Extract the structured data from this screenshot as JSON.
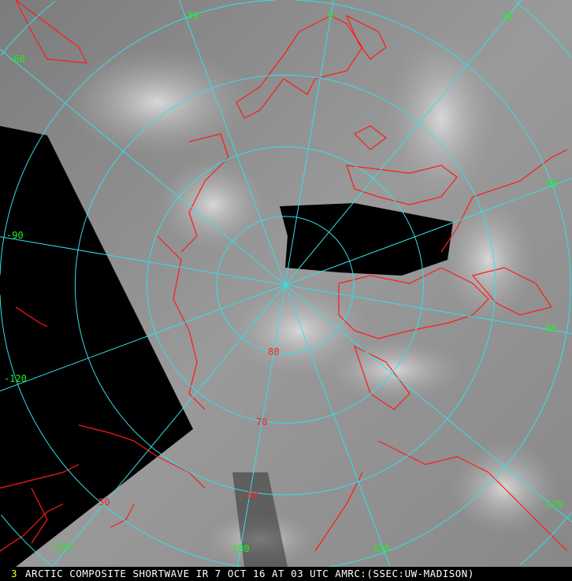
{
  "caption": {
    "frame_number": "3",
    "text": "ARCTIC COMPOSITE SHORTWAVE IR 7 OCT 16 AT 03 UTC AMRC:(SSEC:UW-MADISON)"
  },
  "map": {
    "projection": "polar stereographic (north pole)",
    "latitude_labels": [
      "80",
      "70",
      "60",
      "50"
    ],
    "longitude_labels": [
      "0",
      "30",
      "60",
      "90",
      "120",
      "150",
      "180",
      "-150",
      "-120",
      "-90",
      "-60",
      "-30"
    ],
    "colors": {
      "graticule": "#33e0e8",
      "coastline": "#ff1a1a",
      "longitude_label": "#22ee22",
      "latitude_label": "#ff2020",
      "caption_text": "#ffffff",
      "frame_number": "#ffff00",
      "no_data": "#000000"
    }
  }
}
